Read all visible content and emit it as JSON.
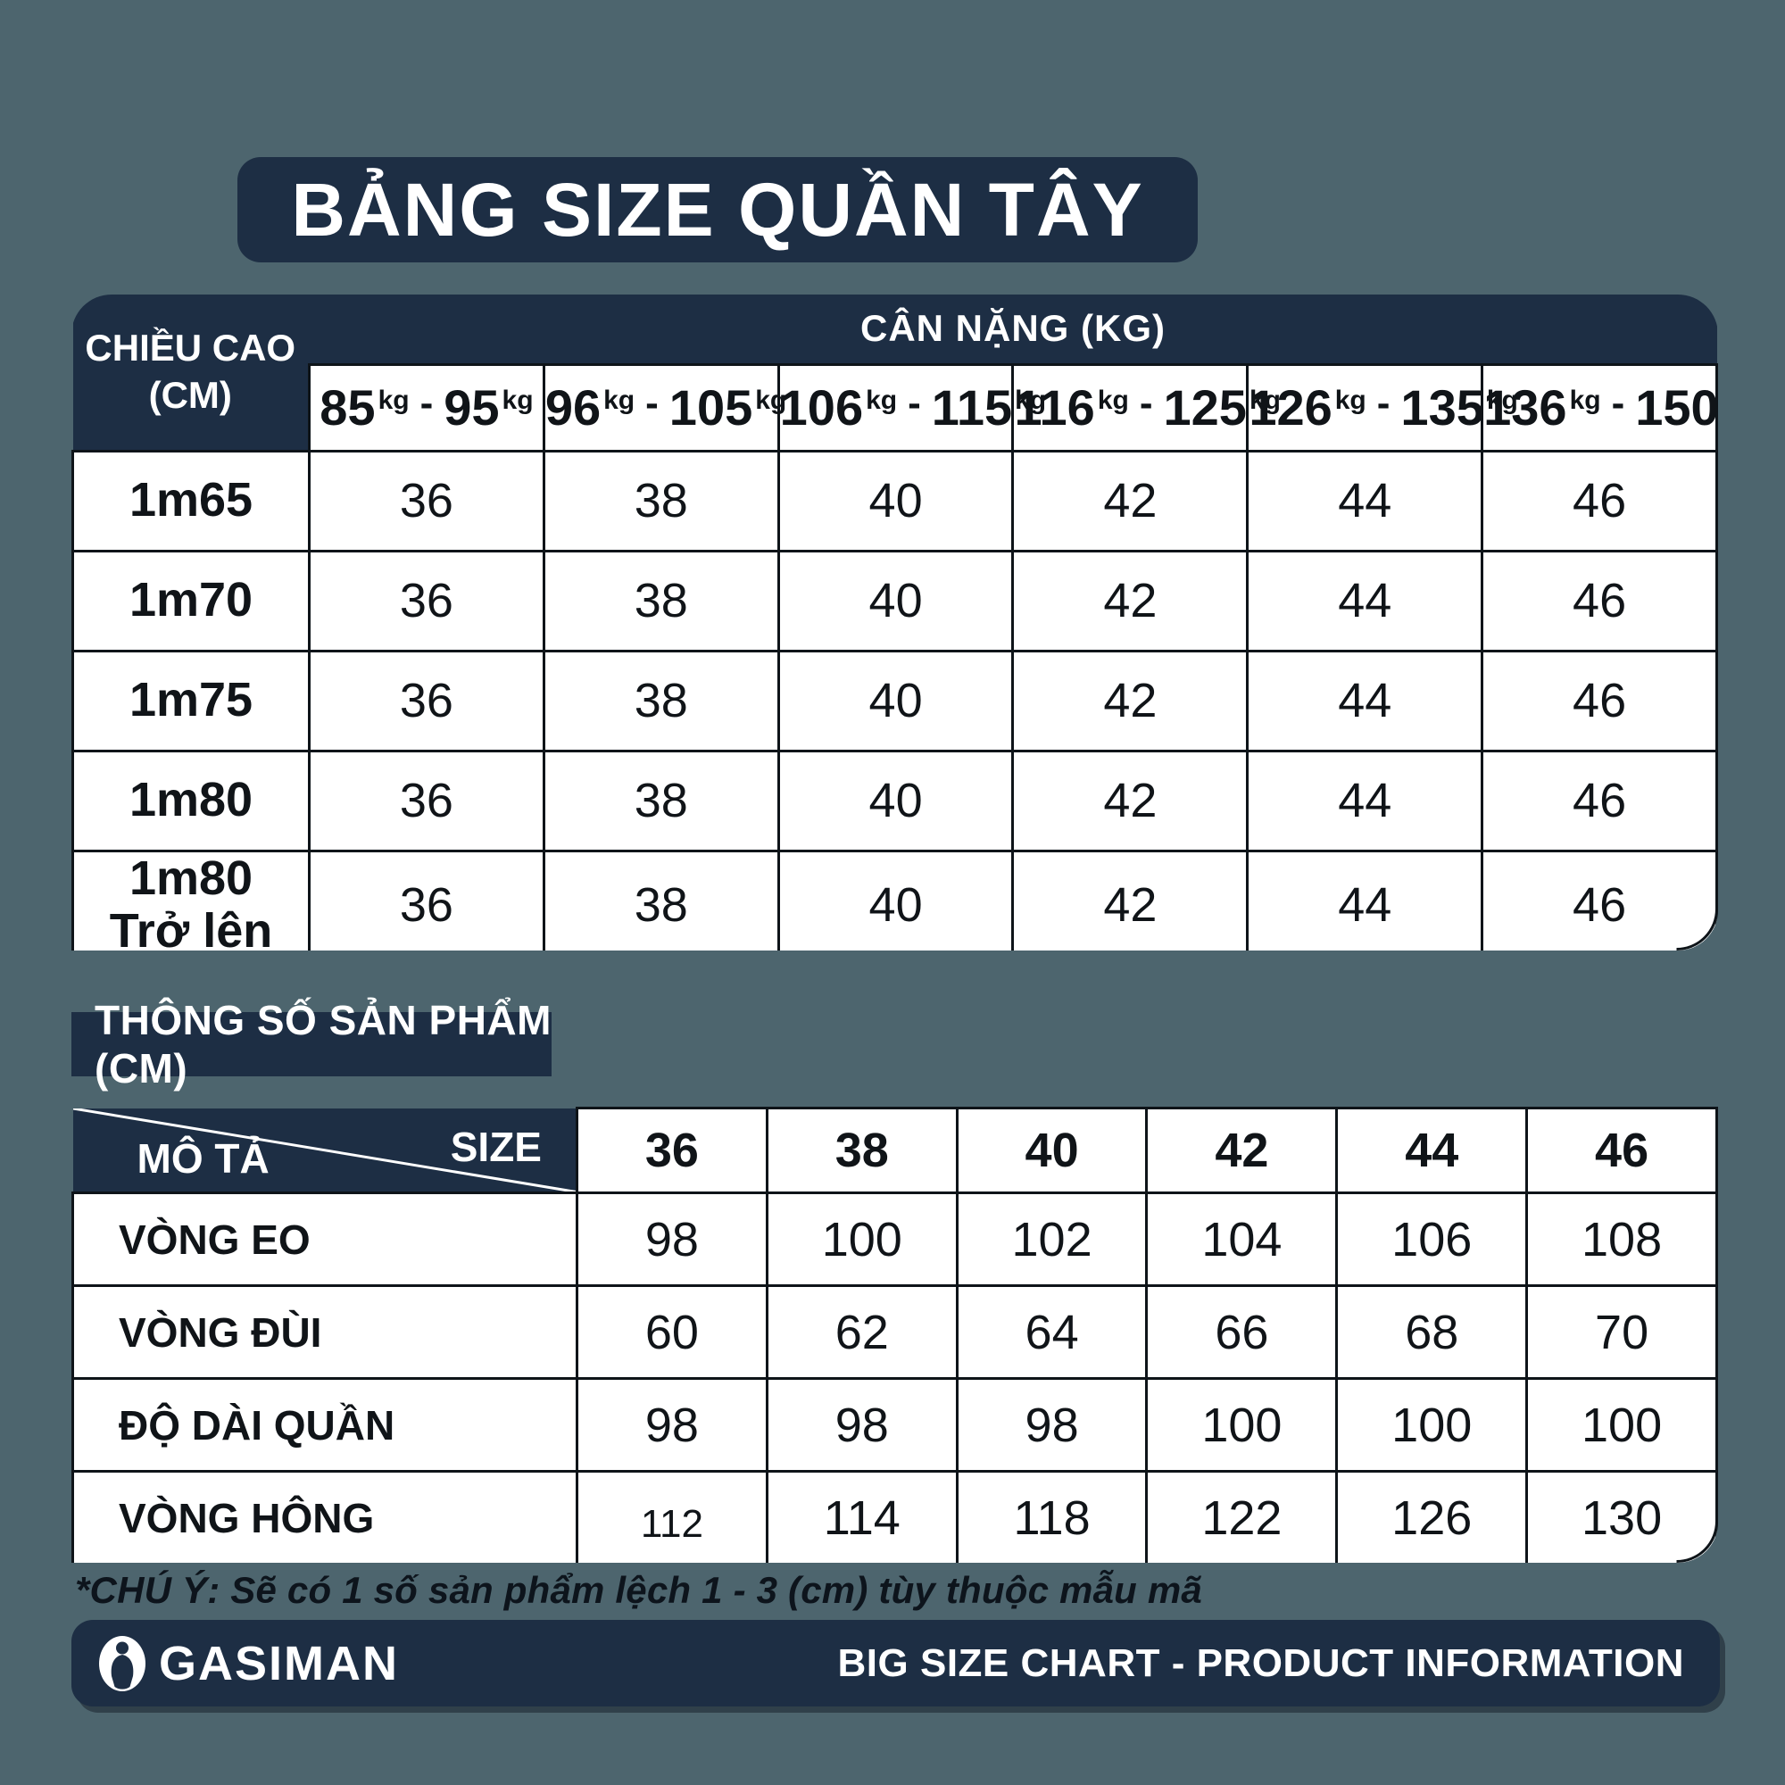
{
  "page": {
    "background_color": "#4D656E",
    "accent_navy": "#1D2E44",
    "title": "BẢNG SIZE QUẦN TÂY"
  },
  "size_table": {
    "corner_header_line1": "CHIỀU CAO",
    "corner_header_line2": "(CM)",
    "weight_header": "CÂN NẶNG (KG)",
    "weight_unit": "kg",
    "weight_ranges": [
      {
        "from": "85",
        "to": "95"
      },
      {
        "from": "96",
        "to": "105"
      },
      {
        "from": "106",
        "to": "115"
      },
      {
        "from": "116",
        "to": "125"
      },
      {
        "from": "126",
        "to": "135"
      },
      {
        "from": "136",
        "to": "150"
      }
    ],
    "rows": [
      {
        "height_lines": [
          "1m65"
        ],
        "sizes": [
          "36",
          "38",
          "40",
          "42",
          "44",
          "46"
        ]
      },
      {
        "height_lines": [
          "1m70"
        ],
        "sizes": [
          "36",
          "38",
          "40",
          "42",
          "44",
          "46"
        ]
      },
      {
        "height_lines": [
          "1m75"
        ],
        "sizes": [
          "36",
          "38",
          "40",
          "42",
          "44",
          "46"
        ]
      },
      {
        "height_lines": [
          "1m80"
        ],
        "sizes": [
          "36",
          "38",
          "40",
          "42",
          "44",
          "46"
        ]
      },
      {
        "height_lines": [
          "1m80",
          "Trở lên"
        ],
        "sizes": [
          "36",
          "38",
          "40",
          "42",
          "44",
          "46"
        ]
      }
    ]
  },
  "spec_table": {
    "section_title": "THÔNG SỐ SẢN PHẨM (CM)",
    "corner_top_right": "SIZE",
    "corner_bottom_left": "MÔ TẢ",
    "size_headers": [
      "36",
      "38",
      "40",
      "42",
      "44",
      "46"
    ],
    "rows": [
      {
        "label": "VÒNG EO",
        "values": [
          "98",
          "100",
          "102",
          "104",
          "106",
          "108"
        ]
      },
      {
        "label": "VÒNG ĐÙI",
        "values": [
          "60",
          "62",
          "64",
          "66",
          "68",
          "70"
        ]
      },
      {
        "label": "ĐỘ DÀI QUẦN",
        "values": [
          "98",
          "98",
          "98",
          "100",
          "100",
          "100"
        ]
      },
      {
        "label": "VÒNG HÔNG",
        "values": [
          "112",
          "114",
          "118",
          "122",
          "126",
          "130"
        ]
      }
    ]
  },
  "note": "*CHÚ Ý: Sẽ có 1 số sản phẩm lệch 1 - 3 (cm) tùy thuộc mẫu mã",
  "footer": {
    "brand": "GASIMAN",
    "logo_icon": "person-oval-logo",
    "label": "BIG SIZE CHART - PRODUCT INFORMATION"
  }
}
